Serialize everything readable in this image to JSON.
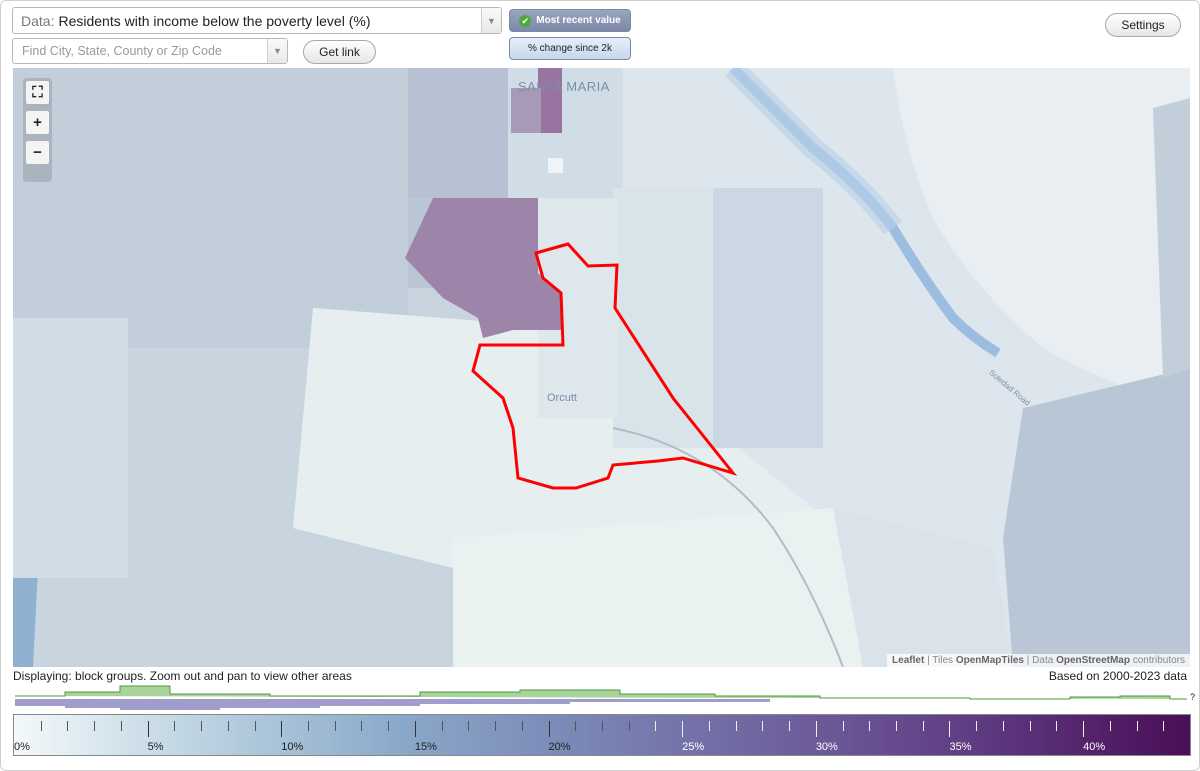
{
  "controls": {
    "data_prefix": "Data:",
    "data_value": "Residents with income below the poverty level (%)",
    "search_placeholder": "Find City, State, County or Zip Code",
    "get_link_label": "Get link",
    "settings_label": "Settings",
    "toggle_most_recent": "Most recent value",
    "toggle_change": "% change since 2k"
  },
  "map": {
    "places": {
      "santa_maria": "SANTA MARIA",
      "orcutt": "Orcutt",
      "road": "Soledad Road"
    },
    "attribution": {
      "leaflet": "Leaflet",
      "sep1": "|",
      "tiles_prefix": "Tiles",
      "tiles": "OpenMapTiles",
      "sep2": "|",
      "data_prefix": "Data",
      "data_source": "OpenStreetMap",
      "contributors": "contributors"
    },
    "highlight_color": "#ff0000"
  },
  "status": {
    "displaying": "Displaying: block groups. Zoom out and pan to view other areas",
    "based_on": "Based on 2000-2023 data"
  },
  "histogram": {
    "more_label": "?"
  },
  "legend": {
    "labels": [
      "0%",
      "5%",
      "10%",
      "15%",
      "20%",
      "25%",
      "30%",
      "35%",
      "40%"
    ],
    "min": 0,
    "max": 44
  }
}
